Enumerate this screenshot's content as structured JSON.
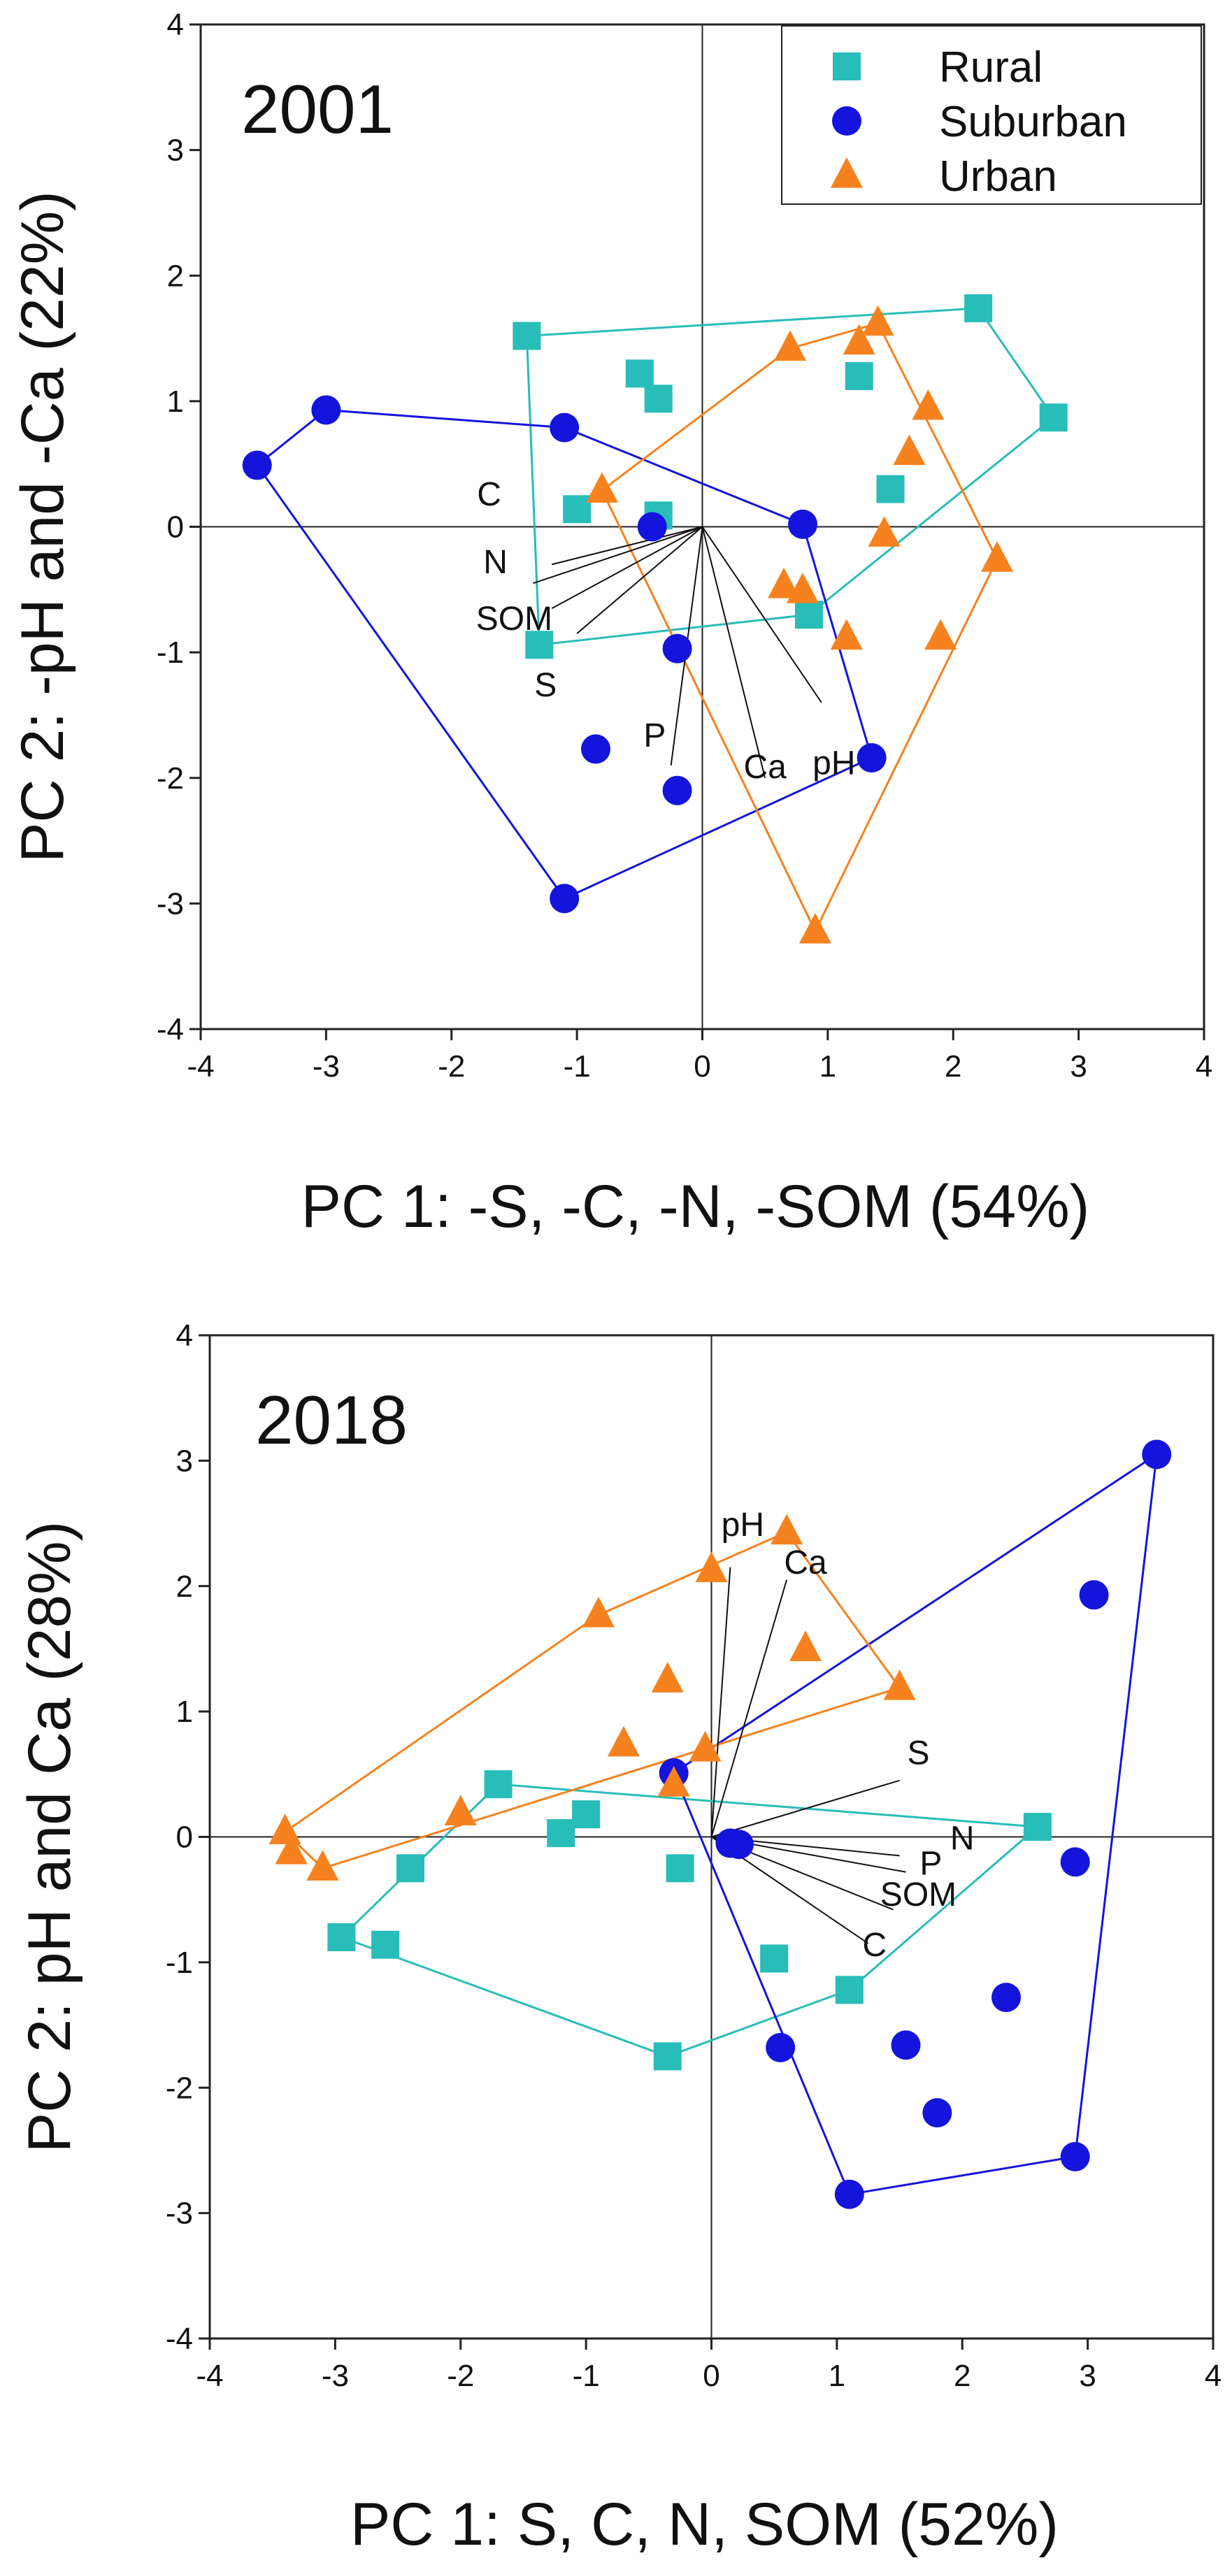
{
  "chart_data": [
    {
      "type": "scatter",
      "year_label": "2001",
      "xlabel": "PC 1: -S, -C, -N, -SOM (54%)",
      "ylabel": "PC 2: -pH and -Ca (22%)",
      "xlim": [
        -4,
        4
      ],
      "ylim": [
        -4,
        4
      ],
      "xticks": [
        "-4",
        "-3",
        "-2",
        "-1",
        "0",
        "1",
        "2",
        "3",
        "4"
      ],
      "yticks": [
        "4",
        "3",
        "2",
        "1",
        "0",
        "-1",
        "-2",
        "-3",
        "-4"
      ],
      "legend": {
        "position": "top-right",
        "entries": [
          "Rural",
          "Suburban",
          "Urban"
        ]
      },
      "series": [
        {
          "name": "Rural",
          "marker": "square",
          "color": "#28bdb8",
          "points": [
            [
              -1.4,
              1.52
            ],
            [
              -0.5,
              1.22
            ],
            [
              -0.35,
              1.02
            ],
            [
              1.25,
              1.2
            ],
            [
              2.2,
              1.74
            ],
            [
              2.8,
              0.87
            ],
            [
              1.5,
              0.3
            ],
            [
              -1.0,
              0.14
            ],
            [
              -0.35,
              0.09
            ],
            [
              -1.3,
              -0.94
            ],
            [
              0.85,
              -0.7
            ]
          ],
          "hull": [
            [
              -1.4,
              1.52
            ],
            [
              2.2,
              1.74
            ],
            [
              2.8,
              0.87
            ],
            [
              0.85,
              -0.7
            ],
            [
              -1.3,
              -0.94
            ]
          ]
        },
        {
          "name": "Suburban",
          "marker": "circle",
          "color": "#1414dc",
          "points": [
            [
              -3.55,
              0.49
            ],
            [
              -3.0,
              0.93
            ],
            [
              -1.1,
              0.79
            ],
            [
              -0.4,
              0.0
            ],
            [
              0.8,
              0.02
            ],
            [
              -0.2,
              -0.97
            ],
            [
              -0.85,
              -1.77
            ],
            [
              -0.2,
              -2.1
            ],
            [
              1.35,
              -1.84
            ],
            [
              -1.1,
              -2.96
            ]
          ],
          "hull": [
            [
              -3.55,
              0.49
            ],
            [
              -3.0,
              0.93
            ],
            [
              -1.1,
              0.79
            ],
            [
              0.8,
              0.02
            ],
            [
              1.35,
              -1.84
            ],
            [
              -1.1,
              -2.96
            ]
          ]
        },
        {
          "name": "Urban",
          "marker": "triangle",
          "color": "#f5821e",
          "points": [
            [
              0.7,
              1.42
            ],
            [
              1.25,
              1.47
            ],
            [
              1.4,
              1.62
            ],
            [
              1.8,
              0.95
            ],
            [
              1.65,
              0.59
            ],
            [
              -0.8,
              0.29
            ],
            [
              1.45,
              -0.06
            ],
            [
              2.35,
              -0.26
            ],
            [
              0.65,
              -0.47
            ],
            [
              0.8,
              -0.51
            ],
            [
              1.15,
              -0.88
            ],
            [
              1.9,
              -0.88
            ],
            [
              0.9,
              -3.22
            ]
          ],
          "hull": [
            [
              -0.8,
              0.29
            ],
            [
              0.7,
              1.42
            ],
            [
              1.4,
              1.62
            ],
            [
              2.35,
              -0.26
            ],
            [
              0.9,
              -3.22
            ]
          ]
        }
      ],
      "loadings": [
        {
          "label": "C",
          "end": [
            -1.2,
            -0.3
          ],
          "label_at": [
            -1.7,
            0.17
          ]
        },
        {
          "label": "N",
          "end": [
            -1.35,
            -0.45
          ],
          "label_at": [
            -1.65,
            -0.37
          ]
        },
        {
          "label": "SOM",
          "end": [
            -1.2,
            -0.65
          ],
          "label_at": [
            -1.5,
            -0.82
          ]
        },
        {
          "label": "S",
          "end": [
            -1.0,
            -0.85
          ],
          "label_at": [
            -1.25,
            -1.35
          ]
        },
        {
          "label": "P",
          "end": [
            -0.25,
            -1.9
          ],
          "label_at": [
            -0.38,
            -1.75
          ]
        },
        {
          "label": "Ca",
          "end": [
            0.5,
            -2.0
          ],
          "label_at": [
            0.5,
            -2.0
          ]
        },
        {
          "label": "pH",
          "end": [
            0.95,
            -1.4
          ],
          "label_at": [
            1.05,
            -1.97
          ]
        }
      ]
    },
    {
      "type": "scatter",
      "year_label": "2018",
      "xlabel": "PC 1: S, C, N, SOM (52%)",
      "ylabel": "PC 2: pH and Ca (28%)",
      "xlim": [
        -4,
        4
      ],
      "ylim": [
        -4,
        4
      ],
      "xticks": [
        "-4",
        "-3",
        "-2",
        "-1",
        "0",
        "1",
        "2",
        "3",
        "4"
      ],
      "yticks": [
        "4",
        "3",
        "2",
        "1",
        "0",
        "-1",
        "-2",
        "-3",
        "-4"
      ],
      "series": [
        {
          "name": "Rural",
          "marker": "square",
          "color": "#28bdb8",
          "points": [
            [
              -1.7,
              0.42
            ],
            [
              -1.0,
              0.18
            ],
            [
              -1.2,
              0.03
            ],
            [
              -0.25,
              -0.25
            ],
            [
              -2.4,
              -0.25
            ],
            [
              -2.95,
              -0.8
            ],
            [
              -2.6,
              -0.86
            ],
            [
              0.5,
              -0.97
            ],
            [
              1.1,
              -1.22
            ],
            [
              -0.35,
              -1.75
            ],
            [
              2.6,
              0.08
            ]
          ],
          "hull": [
            [
              -1.7,
              0.42
            ],
            [
              2.6,
              0.08
            ],
            [
              1.1,
              -1.22
            ],
            [
              -0.35,
              -1.75
            ],
            [
              -2.95,
              -0.8
            ]
          ]
        },
        {
          "name": "Suburban",
          "marker": "circle",
          "color": "#1414dc",
          "points": [
            [
              3.55,
              3.05
            ],
            [
              3.05,
              1.93
            ],
            [
              -0.3,
              0.51
            ],
            [
              0.15,
              -0.05
            ],
            [
              0.22,
              -0.06
            ],
            [
              2.9,
              -0.2
            ],
            [
              2.35,
              -1.28
            ],
            [
              1.55,
              -1.66
            ],
            [
              0.55,
              -1.68
            ],
            [
              1.8,
              -2.2
            ],
            [
              2.9,
              -2.55
            ],
            [
              1.1,
              -2.85
            ]
          ],
          "hull": [
            [
              -0.3,
              0.51
            ],
            [
              3.55,
              3.05
            ],
            [
              2.9,
              -2.55
            ],
            [
              1.1,
              -2.85
            ]
          ]
        },
        {
          "name": "Urban",
          "marker": "triangle",
          "color": "#f5821e",
          "points": [
            [
              0.6,
              2.43
            ],
            [
              0.0,
              2.13
            ],
            [
              -0.9,
              1.77
            ],
            [
              0.75,
              1.5
            ],
            [
              -0.35,
              1.25
            ],
            [
              1.5,
              1.19
            ],
            [
              -0.7,
              0.74
            ],
            [
              -0.05,
              0.7
            ],
            [
              -0.3,
              0.42
            ],
            [
              -2.0,
              0.19
            ],
            [
              -3.4,
              0.04
            ],
            [
              -3.35,
              -0.12
            ],
            [
              -3.1,
              -0.25
            ]
          ],
          "hull": [
            [
              -3.4,
              0.04
            ],
            [
              -0.9,
              1.77
            ],
            [
              0.6,
              2.43
            ],
            [
              1.5,
              1.19
            ],
            [
              -3.1,
              -0.25
            ]
          ]
        }
      ],
      "loadings": [
        {
          "label": "pH",
          "end": [
            0.15,
            2.15
          ],
          "label_at": [
            0.25,
            2.4
          ]
        },
        {
          "label": "Ca",
          "end": [
            0.6,
            2.05
          ],
          "label_at": [
            0.75,
            2.1
          ]
        },
        {
          "label": "S",
          "end": [
            1.5,
            0.45
          ],
          "label_at": [
            1.65,
            0.58
          ]
        },
        {
          "label": "N",
          "end": [
            1.5,
            -0.15
          ],
          "label_at": [
            2.0,
            -0.1
          ]
        },
        {
          "label": "P",
          "end": [
            1.55,
            -0.28
          ],
          "label_at": [
            1.75,
            -0.3
          ]
        },
        {
          "label": "SOM",
          "end": [
            1.45,
            -0.58
          ],
          "label_at": [
            1.65,
            -0.55
          ]
        },
        {
          "label": "C",
          "end": [
            1.25,
            -0.85
          ],
          "label_at": [
            1.3,
            -0.95
          ]
        }
      ]
    }
  ]
}
